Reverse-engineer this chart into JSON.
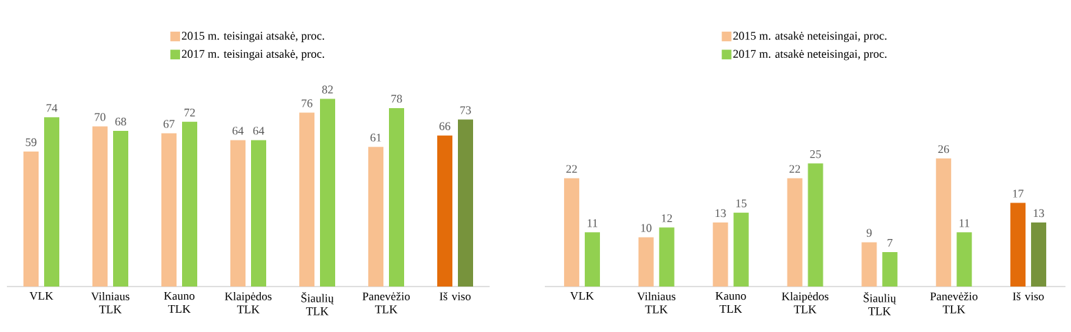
{
  "chart_data": [
    {
      "type": "bar",
      "categories": [
        "VLK",
        "Vilniaus TLK",
        "Kauno TLK",
        "Klaipėdos TLK",
        "Šiaulių TLK",
        "Panevėžio TLK",
        "Iš viso"
      ],
      "data_labels": true,
      "legend": "top",
      "series": [
        {
          "name": "2015 m. teisingai atsakė, proc.",
          "colors": [
            "#f8c090",
            "#f8c090",
            "#f8c090",
            "#f8c090",
            "#f8c090",
            "#f8c090",
            "#e36c0a"
          ],
          "values": [
            59,
            70,
            67,
            64,
            76,
            61,
            66
          ]
        },
        {
          "name": "2017 m. teisingai atsakė, proc.",
          "colors": [
            "#92d050",
            "#92d050",
            "#92d050",
            "#92d050",
            "#92d050",
            "#92d050",
            "#77933c"
          ],
          "values": [
            74,
            68,
            72,
            64,
            82,
            78,
            73
          ]
        }
      ]
    },
    {
      "type": "bar",
      "categories": [
        "VLK",
        "Vilniaus TLK",
        "Kauno TLK",
        "Klaipėdos TLK",
        "Šiaulių TLK",
        "Panevėžio TLK",
        "Iš viso"
      ],
      "data_labels": true,
      "legend": "top",
      "series": [
        {
          "name": "2015 m. atsakė neteisingai, proc.",
          "colors": [
            "#f8c090",
            "#f8c090",
            "#f8c090",
            "#f8c090",
            "#f8c090",
            "#f8c090",
            "#e36c0a"
          ],
          "values": [
            22,
            10,
            13,
            22,
            9,
            26,
            17
          ]
        },
        {
          "name": "2017 m. atsakė neteisingai, proc.",
          "colors": [
            "#92d050",
            "#92d050",
            "#92d050",
            "#92d050",
            "#92d050",
            "#92d050",
            "#77933c"
          ],
          "values": [
            11,
            12,
            15,
            25,
            7,
            11,
            13
          ]
        }
      ]
    }
  ]
}
